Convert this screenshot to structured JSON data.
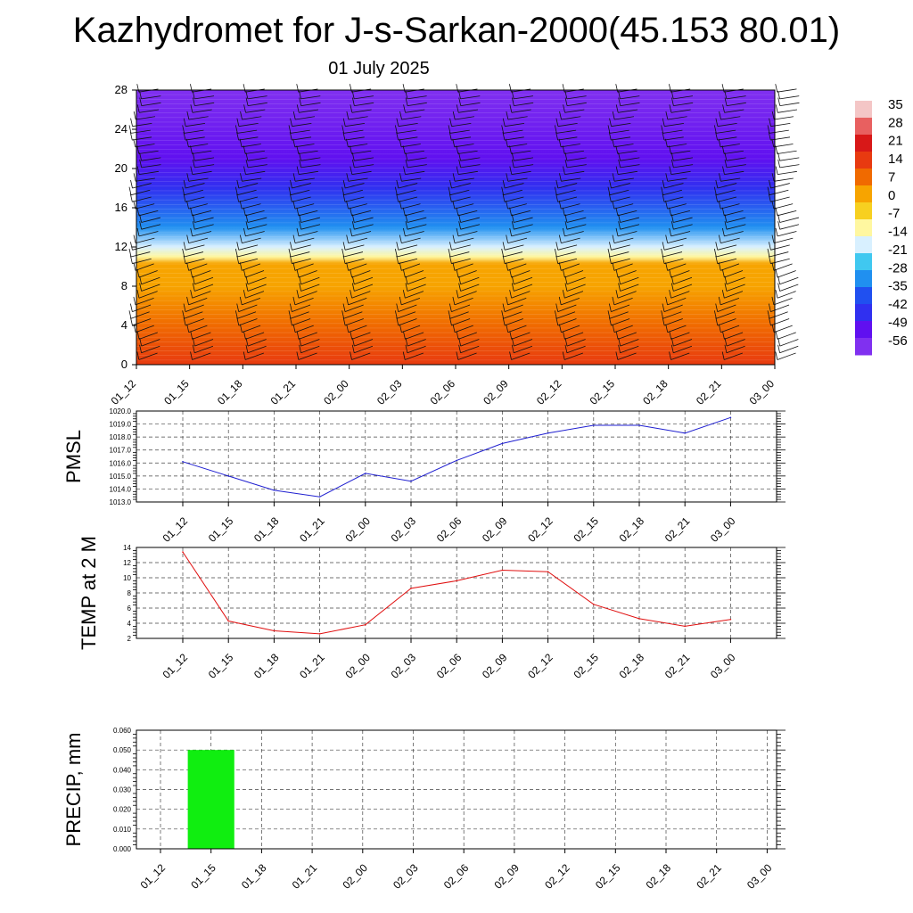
{
  "header": {
    "title": "Kazhydromet for J-s-Sarkan-2000(45.153 80.01)",
    "date": "01 July 2025"
  },
  "colorbar": {
    "labels": [
      "35",
      "28",
      "21",
      "14",
      "7",
      "0",
      "-7",
      "-14",
      "-21",
      "-28",
      "-35",
      "-42",
      "-49",
      "-56"
    ],
    "colors": [
      "#f4c6c6",
      "#e86060",
      "#d81818",
      "#e83a10",
      "#f06a00",
      "#f7a400",
      "#f7d020",
      "#fff7a0",
      "#d8f0ff",
      "#40c8f0",
      "#2090f0",
      "#2050f0",
      "#3030f0",
      "#6010f0",
      "#8030f0"
    ]
  },
  "chart_data": [
    {
      "type": "heatmap",
      "name": "upper-section",
      "x": [
        "01_12",
        "01_15",
        "01_18",
        "01_21",
        "02_00",
        "02_03",
        "02_06",
        "02_09",
        "02_12",
        "02_15",
        "02_18",
        "02_21",
        "03_00"
      ],
      "y_ticks": [
        0,
        4,
        8,
        12,
        16,
        20,
        24,
        28
      ],
      "ylim": [
        0,
        28
      ],
      "profile": [
        {
          "y": 0,
          "value": 14
        },
        {
          "y": 4,
          "value": 9
        },
        {
          "y": 8,
          "value": 3
        },
        {
          "y": 10.3,
          "value": -2
        },
        {
          "y": 11,
          "value": -14
        },
        {
          "y": 12,
          "value": -21
        },
        {
          "y": 14,
          "value": -35
        },
        {
          "y": 18,
          "value": -49
        },
        {
          "y": 21,
          "value": -56
        },
        {
          "y": 28,
          "value": -63
        }
      ]
    },
    {
      "type": "line",
      "name": "pmsl",
      "ylabel": "PMSL",
      "x": [
        "01_12",
        "01_15",
        "01_18",
        "01_21",
        "02_00",
        "02_03",
        "02_06",
        "02_09",
        "02_12",
        "02_15",
        "02_18",
        "02_21",
        "03_00"
      ],
      "values": [
        1016.1,
        1015.0,
        1013.9,
        1013.4,
        1015.2,
        1014.6,
        1016.2,
        1017.5,
        1018.3,
        1018.9,
        1018.9,
        1018.3,
        1019.5
      ],
      "ylim": [
        1013.0,
        1020.0
      ],
      "y_ticks": [
        "1013.0",
        "1014.0",
        "1015.0",
        "1016.0",
        "1017.0",
        "1018.0",
        "1019.0",
        "1020.0"
      ],
      "color": "#1f1fd0",
      "grid": true
    },
    {
      "type": "line",
      "name": "temp-2m",
      "ylabel": "TEMP at 2 M",
      "x": [
        "01_12",
        "01_15",
        "01_18",
        "01_21",
        "02_00",
        "02_03",
        "02_06",
        "02_09",
        "02_12",
        "02_15",
        "02_18",
        "02_21",
        "03_00"
      ],
      "values": [
        13.4,
        4.3,
        3.0,
        2.6,
        3.8,
        8.6,
        9.6,
        11.0,
        10.8,
        6.5,
        4.6,
        3.6,
        4.5
      ],
      "ylim": [
        2,
        14
      ],
      "y_ticks": [
        "2",
        "4",
        "6",
        "8",
        "10",
        "12",
        "14"
      ],
      "color": "#e01010",
      "grid": true
    },
    {
      "type": "bar",
      "name": "precip",
      "ylabel": "PRECIP, mm",
      "categories": [
        "01_12",
        "01_15",
        "01_18",
        "01_21",
        "02_00",
        "02_03",
        "02_06",
        "02_09",
        "02_12",
        "02_15",
        "02_18",
        "02_21",
        "03_00"
      ],
      "values": [
        0,
        0.05,
        0,
        0,
        0,
        0,
        0,
        0,
        0,
        0,
        0,
        0,
        0
      ],
      "ylim": [
        0,
        0.06
      ],
      "y_ticks": [
        "0.000",
        "0.010",
        "0.020",
        "0.030",
        "0.040",
        "0.050",
        "0.060"
      ],
      "color": "#10ee10",
      "grid": true
    }
  ]
}
